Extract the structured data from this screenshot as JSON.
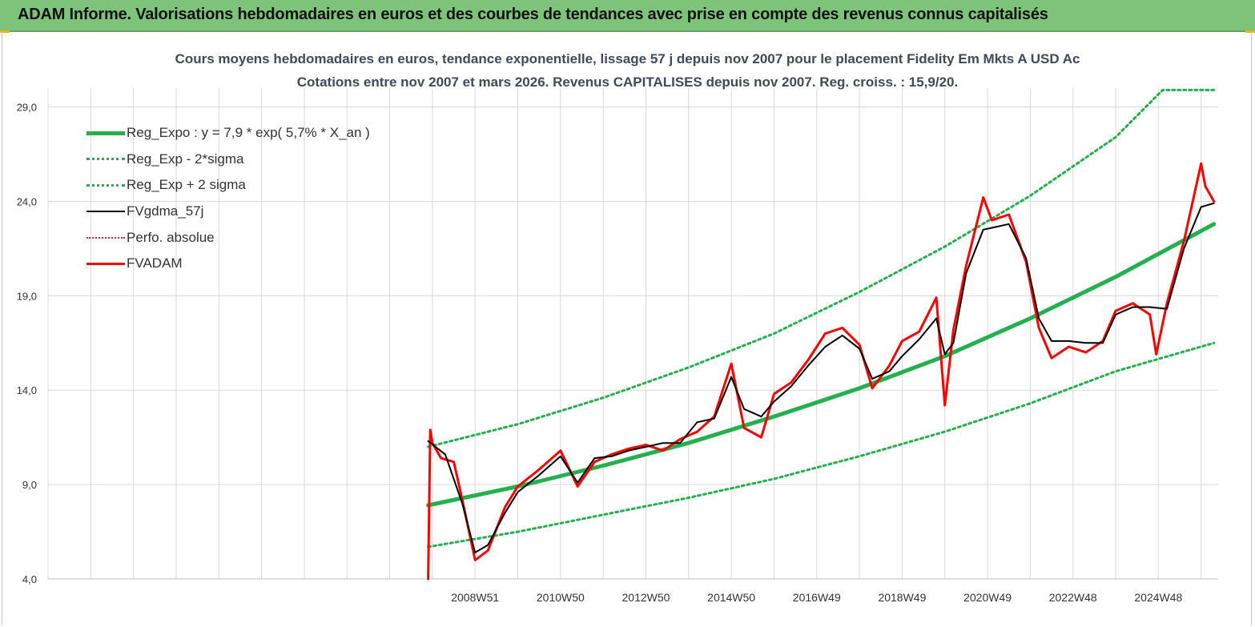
{
  "banner": {
    "title": "ADAM Informe. Valorisations hebdomadaires en euros et des courbes de tendances avec prise en compte des revenus connus capitalisés"
  },
  "colors": {
    "banner": "#7ec37a",
    "reg_expo": "#22b14c",
    "band": "#22b14c",
    "gdma": "#000000",
    "perfo": "#d62020",
    "adam": "#ff0000",
    "grid": "#d9d9d9"
  },
  "chart_data": {
    "type": "line",
    "title_line1": "Cours moyens hebdomadaires en euros, tendance exponentielle, lissage 57 j depuis nov 2007  pour le placement Fidelity Em Mkts A USD Ac",
    "title_line2": "Cotations entre nov 2007 et mars 2026. Revenus CAPITALISES  depuis nov 2007. Reg. croiss. : 15,9/20.",
    "xlabel": "",
    "ylabel": "",
    "ylim": [
      4,
      30
    ],
    "y_ticks": [
      "4,0",
      "9,0",
      "14,0",
      "19,0",
      "24,0",
      "29,0"
    ],
    "y_tick_values": [
      4,
      9,
      14,
      19,
      24,
      29
    ],
    "xlim": [
      1999,
      2026.4
    ],
    "x_tick_labels": [
      "2008W51",
      "2010W50",
      "2012W50",
      "2014W50",
      "2016W49",
      "2018W49",
      "2020W49",
      "2022W48",
      "2024W48"
    ],
    "x_tick_values": [
      2009.0,
      2011.0,
      2013.0,
      2015.0,
      2017.0,
      2019.0,
      2021.0,
      2023.0,
      2025.0
    ],
    "x_gridlines": [
      1999,
      2000,
      2001,
      2002,
      2003,
      2004,
      2005,
      2006,
      2007,
      2008,
      2009,
      2010,
      2011,
      2012,
      2013,
      2014,
      2015,
      2016,
      2017,
      2018,
      2019,
      2020,
      2021,
      2022,
      2023,
      2024,
      2025,
      2026
    ],
    "grid": true,
    "legend_position": "top-left",
    "series": [
      {
        "name": "Reg_Expo : y = 7,9 * exp( 5,7% *  X_an )",
        "style": "solid-thick",
        "x": [
          2007.9,
          2010,
          2012,
          2014,
          2016,
          2018,
          2020,
          2022,
          2024,
          2026.3
        ],
        "y": [
          7.9,
          8.9,
          10.0,
          11.2,
          12.6,
          14.1,
          15.8,
          17.8,
          20.0,
          22.8
        ]
      },
      {
        "name": "Reg_Exp - 2*sigma",
        "style": "dotted",
        "x": [
          2007.9,
          2010,
          2012,
          2014,
          2016,
          2018,
          2020,
          2022,
          2024,
          2026.3
        ],
        "y": [
          5.7,
          6.5,
          7.4,
          8.3,
          9.3,
          10.5,
          11.8,
          13.3,
          15.0,
          16.5
        ]
      },
      {
        "name": "Reg_Exp + 2 sigma",
        "style": "dotted",
        "x": [
          2007.9,
          2010,
          2012,
          2014,
          2016,
          2018,
          2020,
          2022,
          2024,
          2025.1,
          2026.3
        ],
        "y": [
          11.0,
          12.2,
          13.6,
          15.2,
          17.0,
          19.2,
          21.6,
          24.3,
          27.4,
          29.9,
          29.9
        ]
      },
      {
        "name": "FVgdma_57j",
        "style": "solid",
        "x": [
          2007.9,
          2008.3,
          2008.7,
          2009.0,
          2009.3,
          2009.7,
          2010.0,
          2010.5,
          2011.0,
          2011.4,
          2011.8,
          2012.2,
          2012.6,
          2013.0,
          2013.4,
          2013.8,
          2014.2,
          2014.6,
          2015.0,
          2015.3,
          2015.7,
          2016.0,
          2016.4,
          2016.8,
          2017.2,
          2017.6,
          2018.0,
          2018.3,
          2018.7,
          2019.0,
          2019.4,
          2019.8,
          2020.0,
          2020.2,
          2020.5,
          2020.9,
          2021.1,
          2021.5,
          2021.9,
          2022.2,
          2022.5,
          2022.9,
          2023.3,
          2023.7,
          2024.0,
          2024.4,
          2024.8,
          2025.2,
          2025.6,
          2026.0,
          2026.3
        ],
        "y": [
          11.3,
          10.6,
          8.0,
          5.4,
          5.8,
          7.5,
          8.6,
          9.5,
          10.5,
          9.1,
          10.4,
          10.5,
          10.8,
          11.0,
          11.2,
          11.2,
          12.3,
          12.5,
          14.7,
          13.0,
          12.6,
          13.4,
          14.2,
          15.3,
          16.3,
          16.9,
          16.2,
          14.6,
          15.0,
          15.8,
          16.7,
          17.8,
          15.9,
          16.5,
          20.2,
          22.5,
          22.6,
          22.8,
          21.0,
          17.8,
          16.6,
          16.6,
          16.5,
          16.5,
          18.0,
          18.4,
          18.4,
          18.3,
          21.5,
          23.7,
          23.9
        ]
      },
      {
        "name": "Perfo. absolue",
        "style": "dotted-red",
        "x": [
          2007.9,
          2007.95,
          2008.0,
          2008.2,
          2008.5,
          2008.7,
          2009.0,
          2009.3,
          2009.7,
          2010.0,
          2010.5,
          2011.0,
          2011.4,
          2011.8,
          2012.2,
          2012.6,
          2013.0,
          2013.4,
          2013.8,
          2014.2,
          2014.6,
          2015.0,
          2015.3,
          2015.7,
          2016.0,
          2016.4,
          2016.8,
          2017.2,
          2017.6,
          2018.0,
          2018.3,
          2018.7,
          2019.0,
          2019.4,
          2019.8,
          2020.0,
          2020.2,
          2020.5,
          2020.9,
          2021.1,
          2021.5,
          2021.9,
          2022.2,
          2022.5,
          2022.9,
          2023.3,
          2023.7,
          2024.0,
          2024.4,
          2024.8,
          2024.95,
          2025.2,
          2025.6,
          2026.0,
          2026.1,
          2026.3
        ],
        "y": [
          4.0,
          11.9,
          11.2,
          10.4,
          10.2,
          8.2,
          5.0,
          5.5,
          7.8,
          8.9,
          9.8,
          10.8,
          8.9,
          10.2,
          10.6,
          10.9,
          11.1,
          10.8,
          11.4,
          11.8,
          12.6,
          15.4,
          12.0,
          11.5,
          13.8,
          14.4,
          15.6,
          17.0,
          17.3,
          16.4,
          14.1,
          15.3,
          16.6,
          17.1,
          18.9,
          13.2,
          17.2,
          20.6,
          24.2,
          23.0,
          23.3,
          20.8,
          17.3,
          15.7,
          16.3,
          16.0,
          16.6,
          18.2,
          18.6,
          18.0,
          15.9,
          18.6,
          21.9,
          26.0,
          24.8,
          24.0
        ]
      },
      {
        "name": "FVADAM",
        "style": "solid-red",
        "x": [
          2007.9,
          2007.95,
          2008.0,
          2008.2,
          2008.5,
          2008.7,
          2009.0,
          2009.3,
          2009.7,
          2010.0,
          2010.5,
          2011.0,
          2011.4,
          2011.8,
          2012.2,
          2012.6,
          2013.0,
          2013.4,
          2013.8,
          2014.2,
          2014.6,
          2015.0,
          2015.3,
          2015.7,
          2016.0,
          2016.4,
          2016.8,
          2017.2,
          2017.6,
          2018.0,
          2018.3,
          2018.7,
          2019.0,
          2019.4,
          2019.8,
          2020.0,
          2020.2,
          2020.5,
          2020.9,
          2021.1,
          2021.5,
          2021.9,
          2022.2,
          2022.5,
          2022.9,
          2023.3,
          2023.7,
          2024.0,
          2024.4,
          2024.8,
          2024.95,
          2025.2,
          2025.6,
          2026.0,
          2026.1,
          2026.3
        ],
        "y": [
          4.0,
          11.9,
          11.2,
          10.4,
          10.2,
          8.2,
          5.0,
          5.5,
          7.8,
          8.9,
          9.8,
          10.8,
          8.9,
          10.2,
          10.6,
          10.9,
          11.1,
          10.8,
          11.4,
          11.8,
          12.6,
          15.4,
          12.0,
          11.5,
          13.8,
          14.4,
          15.6,
          17.0,
          17.3,
          16.4,
          14.1,
          15.3,
          16.6,
          17.1,
          18.9,
          13.2,
          17.2,
          20.6,
          24.2,
          23.0,
          23.3,
          20.8,
          17.3,
          15.7,
          16.3,
          16.0,
          16.6,
          18.2,
          18.6,
          18.0,
          15.9,
          18.6,
          21.9,
          26.0,
          24.8,
          24.0
        ]
      }
    ]
  }
}
